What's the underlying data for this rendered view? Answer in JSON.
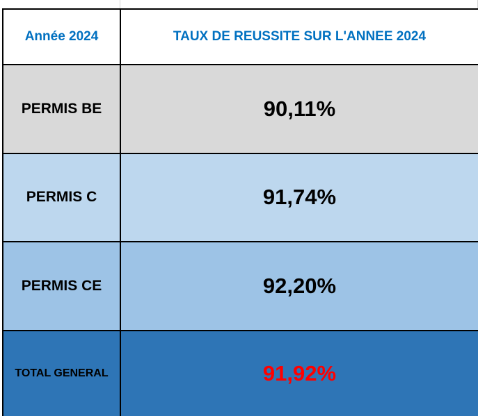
{
  "header": {
    "year_label": "Année 2024",
    "title": "TAUX DE REUSSITE SUR L'ANNEE 2024"
  },
  "rows": [
    {
      "label": "PERMIS BE",
      "value": "90,11%",
      "color": "#d9d9d9"
    },
    {
      "label": "PERMIS C",
      "value": "91,74%",
      "color": "#bdd7ee"
    },
    {
      "label": "PERMIS CE",
      "value": "92,20%",
      "color": "#9dc3e6"
    }
  ],
  "total": {
    "label": "TOTAL GENERAL",
    "value": "91,92%",
    "color": "#2e75b6",
    "value_color": "#ff0000"
  },
  "colors": {
    "header_text": "#0070c0",
    "border": "#000000"
  }
}
